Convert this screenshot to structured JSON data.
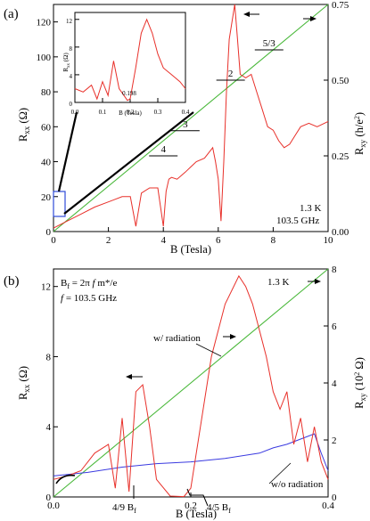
{
  "chart_data": [
    {
      "panel": "(a)",
      "type": "line",
      "xlabel": "B (Tesla)",
      "ylabel_left": "R_xx (Ω)",
      "ylabel_right": "R_xy (h/e^2)",
      "xlim": [
        0,
        10
      ],
      "ylim_left": [
        0,
        130
      ],
      "ylim_right": [
        0,
        0.75
      ],
      "x_ticks": [
        "0",
        "2",
        "4",
        "6",
        "8",
        "10"
      ],
      "y_left_ticks": [
        "0",
        "20",
        "40",
        "60",
        "80",
        "100",
        "120"
      ],
      "y_right_ticks": [
        "0.00",
        "0.25",
        "0.50",
        "0.75"
      ],
      "annotations": [
        "1.3 K",
        "103.5 GHz"
      ],
      "plateau_labels": [
        {
          "text": "4",
          "x": 4.0,
          "y_right": 0.25
        },
        {
          "text": "3",
          "x": 4.8,
          "y_right": 0.333
        },
        {
          "text": "2",
          "x": 6.45,
          "y_right": 0.5
        },
        {
          "text": "5/3",
          "x": 7.85,
          "y_right": 0.6
        }
      ],
      "series": [
        {
          "color": "#e8302a",
          "axis": "left",
          "x": [
            0.0,
            0.5,
            1.0,
            1.5,
            2.0,
            2.5,
            2.8,
            3.0,
            3.2,
            3.5,
            3.8,
            4.0,
            4.1,
            4.2,
            4.3,
            4.5,
            4.8,
            5.0,
            5.2,
            5.5,
            5.8,
            5.9,
            6.0,
            6.1,
            6.2,
            6.3,
            6.4,
            6.5,
            6.6,
            6.7,
            6.8,
            7.0,
            7.2,
            7.4,
            7.6,
            7.8,
            8.0,
            8.2,
            8.4,
            8.6,
            8.8,
            9.0,
            9.3,
            9.6,
            10.0
          ],
          "y": [
            2,
            6,
            10,
            14,
            17,
            20,
            20,
            3,
            22,
            25,
            25,
            3,
            23,
            30,
            31,
            30,
            34,
            37,
            40,
            42,
            48,
            40,
            30,
            6,
            40,
            80,
            110,
            120,
            130,
            110,
            90,
            88,
            90,
            80,
            70,
            60,
            58,
            52,
            48,
            50,
            55,
            60,
            62,
            60,
            63
          ]
        },
        {
          "color": "#49b83a",
          "axis": "right",
          "x": [
            0,
            10
          ],
          "y": [
            0,
            0.75
          ]
        }
      ],
      "inset": {
        "xlabel": "B (Tesla)",
        "ylabel": "R_xx (Ω)",
        "xlim": [
          0,
          0.4
        ],
        "ylim": [
          0,
          13
        ],
        "x_ticks": [
          "0.0",
          "0.1",
          "0.2",
          "0.3",
          "0.4"
        ],
        "y_ticks": [
          "0",
          "4",
          "8",
          "12"
        ],
        "marker_label": "0.198",
        "series": [
          {
            "color": "#e8302a",
            "x": [
              0.0,
              0.03,
              0.06,
              0.08,
              0.1,
              0.12,
              0.14,
              0.16,
              0.19,
              0.2,
              0.22,
              0.24,
              0.26,
              0.28,
              0.3,
              0.32,
              0.35,
              0.38,
              0.4
            ],
            "y": [
              2,
              1.5,
              2.5,
              0.5,
              3,
              1,
              6,
              2,
              0.3,
              0.5,
              5,
              10,
              12,
              10,
              7,
              5,
              4,
              3,
              2
            ]
          }
        ]
      }
    },
    {
      "panel": "(b)",
      "type": "line",
      "xlabel": "B (Tesla)",
      "ylabel_left": "R_xx (Ω)",
      "ylabel_right": "R_xy (10^2 Ω)",
      "xlim": [
        0,
        0.4
      ],
      "ylim_left": [
        0,
        13
      ],
      "ylim_right": [
        0,
        8
      ],
      "x_ticks": [
        "0.0",
        "0.2",
        "0.4"
      ],
      "y_left_ticks": [
        "0",
        "4",
        "8",
        "12"
      ],
      "y_right_ticks": [
        "0",
        "2",
        "4",
        "6",
        "8"
      ],
      "annotations": [
        "B_f = 2π f m*/e",
        "f = 103.5 GHz",
        "1.3 K",
        "w/ radiation",
        "w/o radiation",
        "4/9 B_f",
        "4/5 B_f"
      ],
      "series": [
        {
          "name": "w/ radiation",
          "color": "#e8302a",
          "axis": "left",
          "x": [
            0.0,
            0.02,
            0.04,
            0.06,
            0.08,
            0.09,
            0.1,
            0.11,
            0.12,
            0.13,
            0.14,
            0.15,
            0.17,
            0.19,
            0.2,
            0.21,
            0.23,
            0.25,
            0.27,
            0.28,
            0.29,
            0.3,
            0.31,
            0.32,
            0.33,
            0.34,
            0.35,
            0.36,
            0.37,
            0.38,
            0.39,
            0.4
          ],
          "y": [
            1.0,
            1.2,
            1.5,
            2.5,
            3.0,
            0.5,
            4.5,
            0.3,
            6.0,
            6.4,
            4.0,
            1.0,
            0.05,
            0.02,
            0.5,
            3.0,
            8.0,
            11.0,
            12.6,
            12.0,
            11.0,
            9.5,
            8.0,
            6.0,
            5.0,
            6.0,
            3.0,
            4.5,
            2.0,
            4.0,
            2.0,
            1.0
          ]
        },
        {
          "name": "w/o radiation",
          "color": "#3a3ae0",
          "axis": "left",
          "x": [
            0.0,
            0.05,
            0.1,
            0.15,
            0.2,
            0.25,
            0.3,
            0.32,
            0.34,
            0.36,
            0.38,
            0.39,
            0.4
          ],
          "y": [
            1.2,
            1.4,
            1.7,
            1.9,
            2.0,
            2.2,
            2.5,
            2.8,
            3.0,
            3.3,
            3.6,
            2.5,
            1.5
          ]
        },
        {
          "color": "#49b83a",
          "axis": "right",
          "x": [
            0.0,
            0.4
          ],
          "y": [
            0,
            8
          ]
        }
      ]
    }
  ],
  "text": {
    "panel_a": "(a)",
    "panel_b": "(b)",
    "a_xlabel": "B (Tesla)",
    "a_temp": "1.3 K",
    "a_freq": "103.5 GHz",
    "a_plateau_4": "4",
    "a_plateau_3": "3",
    "a_plateau_2": "2",
    "a_plateau_53": "5/3",
    "inset_xlabel": "B (Tesla)",
    "inset_marker": "0.198",
    "b_xlabel": "B (Tesla)",
    "b_temp": "1.3 K",
    "b_with": "w/ radiation",
    "b_without": "w/o radiation"
  },
  "colors": {
    "red": "#e8302a",
    "green": "#49b83a",
    "blue": "#3a3ae0",
    "box": "#2e4bd8"
  }
}
